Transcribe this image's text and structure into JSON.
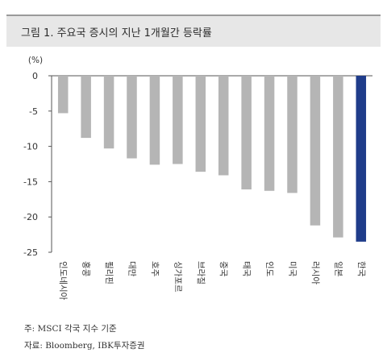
{
  "header": {
    "title": "그림 1. 주요국 증시의 지난 1개월간 등락률"
  },
  "notes": {
    "note1": "주: MSCI 각국 지수 기준",
    "note2": "자료: Bloomberg, IBK투자증권"
  },
  "colors": {
    "bar_default": "#b5b5b5",
    "bar_highlight": "#1f3c8a",
    "axis": "#555555"
  },
  "chart_data": {
    "type": "bar",
    "unit_label": "(%)",
    "categories": [
      "인도네시아",
      "홍콩",
      "필리핀",
      "대만",
      "호주",
      "싱가포르",
      "브라질",
      "중국",
      "태국",
      "인도",
      "미국",
      "러시아",
      "일본",
      "한국"
    ],
    "values": [
      -5.3,
      -8.8,
      -10.3,
      -11.7,
      -12.6,
      -12.5,
      -13.6,
      -14.1,
      -16.1,
      -16.3,
      -16.6,
      -21.2,
      -22.9,
      -23.5
    ],
    "highlight_index": 13,
    "ylim": [
      -25,
      0
    ],
    "yticks": [
      0,
      -5,
      -10,
      -15,
      -20,
      -25
    ],
    "ylabel": "",
    "xlabel": ""
  }
}
